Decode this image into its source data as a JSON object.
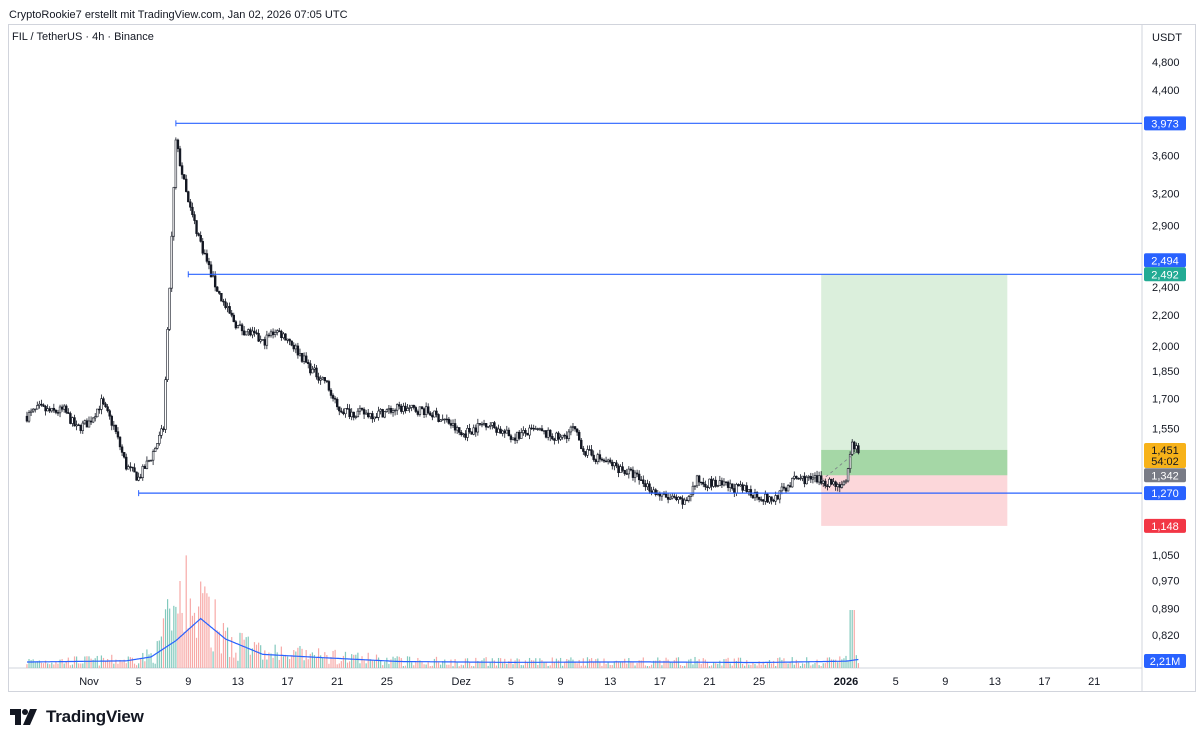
{
  "header": {
    "attribution": "CryptoRookie7 erstellt mit TradingView.com, Jan 02, 2026 07:05 UTC",
    "symbol_line": "FIL / TetherUS · 4h · Binance"
  },
  "branding": {
    "logo_text": "TradingView",
    "logo_icon": "tradingview-logo-icon"
  },
  "chart_data": {
    "type": "candlestick",
    "symbol": "FIL / TetherUS",
    "interval": "4h",
    "exchange": "Binance",
    "currency_label": "USDT",
    "price_scale": "log",
    "y_ticks": [
      "4,800",
      "4,400",
      "3,600",
      "3,200",
      "2,900",
      "2,400",
      "2,200",
      "2,000",
      "1,850",
      "1,700",
      "1,550",
      "1,050",
      "0,970",
      "0,890",
      "0,820"
    ],
    "x_ticks": [
      {
        "label": "Nov",
        "date": "2025-11-01"
      },
      {
        "label": "5",
        "date": "2025-11-05"
      },
      {
        "label": "9",
        "date": "2025-11-09"
      },
      {
        "label": "13",
        "date": "2025-11-13"
      },
      {
        "label": "17",
        "date": "2025-11-17"
      },
      {
        "label": "21",
        "date": "2025-11-21"
      },
      {
        "label": "25",
        "date": "2025-11-25"
      },
      {
        "label": "Dez",
        "date": "2025-12-01"
      },
      {
        "label": "5",
        "date": "2025-12-05"
      },
      {
        "label": "9",
        "date": "2025-12-09"
      },
      {
        "label": "13",
        "date": "2025-12-13"
      },
      {
        "label": "17",
        "date": "2025-12-17"
      },
      {
        "label": "21",
        "date": "2025-12-21"
      },
      {
        "label": "25",
        "date": "2025-12-25"
      },
      {
        "label": "2026",
        "date": "2026-01-01",
        "bold": true
      },
      {
        "label": "5",
        "date": "2026-01-05"
      },
      {
        "label": "9",
        "date": "2026-01-09"
      },
      {
        "label": "13",
        "date": "2026-01-13"
      },
      {
        "label": "17",
        "date": "2026-01-17"
      },
      {
        "label": "21",
        "date": "2026-01-21"
      }
    ],
    "price_path": [
      [
        "2025-10-27",
        1.61
      ],
      [
        "2025-10-28",
        1.65
      ],
      [
        "2025-10-29",
        1.63
      ],
      [
        "2025-10-30",
        1.64
      ],
      [
        "2025-10-31",
        1.55
      ],
      [
        "2025-11-01",
        1.58
      ],
      [
        "2025-11-02",
        1.68
      ],
      [
        "2025-11-03",
        1.56
      ],
      [
        "2025-11-04",
        1.38
      ],
      [
        "2025-11-05",
        1.33
      ],
      [
        "2025-11-06",
        1.42
      ],
      [
        "2025-11-07",
        1.55
      ],
      [
        "2025-11-07 12:00",
        2.4
      ],
      [
        "2025-11-08",
        3.75
      ],
      [
        "2025-11-09",
        3.1
      ],
      [
        "2025-11-10",
        2.75
      ],
      [
        "2025-11-11",
        2.45
      ],
      [
        "2025-11-12",
        2.25
      ],
      [
        "2025-11-13",
        2.12
      ],
      [
        "2025-11-14",
        2.08
      ],
      [
        "2025-11-15",
        2.02
      ],
      [
        "2025-11-16",
        2.1
      ],
      [
        "2025-11-17",
        2.05
      ],
      [
        "2025-11-18",
        1.95
      ],
      [
        "2025-11-19",
        1.85
      ],
      [
        "2025-11-20",
        1.8
      ],
      [
        "2025-11-21",
        1.65
      ],
      [
        "2025-11-22",
        1.63
      ],
      [
        "2025-11-24",
        1.62
      ],
      [
        "2025-11-26",
        1.65
      ],
      [
        "2025-11-28",
        1.64
      ],
      [
        "2025-11-30",
        1.58
      ],
      [
        "2025-12-01",
        1.52
      ],
      [
        "2025-12-03",
        1.58
      ],
      [
        "2025-12-05",
        1.51
      ],
      [
        "2025-12-07",
        1.54
      ],
      [
        "2025-12-09",
        1.5
      ],
      [
        "2025-12-10",
        1.55
      ],
      [
        "2025-12-11",
        1.44
      ],
      [
        "2025-12-13",
        1.39
      ],
      [
        "2025-12-15",
        1.34
      ],
      [
        "2025-12-17",
        1.26
      ],
      [
        "2025-12-19",
        1.23
      ],
      [
        "2025-12-20",
        1.32
      ],
      [
        "2025-12-22",
        1.3
      ],
      [
        "2025-12-24",
        1.28
      ],
      [
        "2025-12-26",
        1.24
      ],
      [
        "2025-12-28",
        1.33
      ],
      [
        "2025-12-30",
        1.32
      ],
      [
        "2025-12-31",
        1.31
      ],
      [
        "2026-01-01",
        1.3
      ],
      [
        "2026-01-01 12:00",
        1.48
      ],
      [
        "2026-01-02",
        1.45
      ]
    ],
    "volume_ma": [
      [
        "2025-10-27",
        0.35
      ],
      [
        "2025-11-04",
        0.42
      ],
      [
        "2025-11-06",
        0.65
      ],
      [
        "2025-11-08",
        1.6
      ],
      [
        "2025-11-10",
        2.9
      ],
      [
        "2025-11-12",
        1.7
      ],
      [
        "2025-11-15",
        0.8
      ],
      [
        "2025-11-20",
        0.6
      ],
      [
        "2025-11-26",
        0.38
      ],
      [
        "2025-12-05",
        0.33
      ],
      [
        "2025-12-15",
        0.36
      ],
      [
        "2025-12-25",
        0.32
      ],
      [
        "2026-01-01",
        0.4
      ],
      [
        "2026-01-02",
        0.5
      ]
    ],
    "volume_peak": 9.5,
    "levels": [
      {
        "name": "top",
        "price": 3.973,
        "label": "3,973",
        "from": "2025-11-08",
        "to": "2026-01-26"
      },
      {
        "name": "resistance",
        "price": 2.494,
        "label": "2,494",
        "from": "2025-11-09",
        "to": "2026-01-26"
      },
      {
        "name": "support",
        "price": 1.27,
        "label": "1,270",
        "from": "2025-11-05",
        "to": "2026-01-26"
      }
    ],
    "long_position": {
      "from": "2025-12-30",
      "to": "2026-01-14",
      "entry": 1.342,
      "target": 2.492,
      "stop": 1.148,
      "entry_label": "1,342",
      "target_label": "2,492",
      "stop_label": "1,148"
    },
    "last_price": {
      "value": 1.451,
      "label": "1,451",
      "countdown": "54:02"
    },
    "volume_last": {
      "label": "2,21M"
    },
    "colors": {
      "level_line": "#2962ff",
      "level_label": "#2962ff",
      "target": "#22ab94",
      "stop": "#f23645",
      "profit_zone": "rgba(76,175,80,0.20)",
      "profit_zone_near": "rgba(76,175,80,0.38)",
      "loss_zone": "rgba(242,54,69,0.20)",
      "last_price": "#f7b219",
      "entry": "#787b86",
      "candle": "#131722",
      "volume_up": "#82c9bd",
      "volume_down": "#f7a9a7",
      "volume_ma": "#2962ff"
    }
  }
}
